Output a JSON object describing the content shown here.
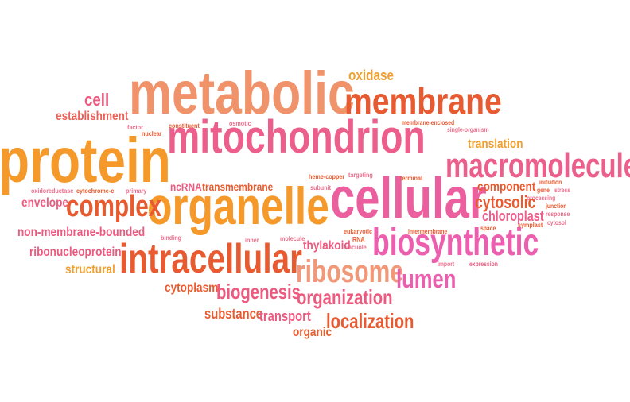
{
  "words": [
    {
      "text": "metabolic",
      "color": "#f0936a"
    },
    {
      "text": "membrane",
      "color": "#e85a30"
    },
    {
      "text": "oxidase",
      "color": "#f0a030"
    },
    {
      "text": "protein",
      "color": "#f59a2a"
    },
    {
      "text": "mitochondrion",
      "color": "#ec5f8c"
    },
    {
      "text": "cell",
      "color": "#ec5a7f"
    },
    {
      "text": "establishment",
      "color": "#e8625a"
    },
    {
      "text": "factor",
      "color": "#ec6e8c"
    },
    {
      "text": "nuclear",
      "color": "#e85a30"
    },
    {
      "text": "constituent",
      "color": "#e85a30"
    },
    {
      "text": "osmotic",
      "color": "#ec6e8c"
    },
    {
      "text": "membrane-enclosed",
      "color": "#e85a30"
    },
    {
      "text": "single-organism",
      "color": "#ec6e8c"
    },
    {
      "text": "translation",
      "color": "#f0a030"
    },
    {
      "text": "macromolecule",
      "color": "#ec5f8c"
    },
    {
      "text": "organelle",
      "color": "#f59a2a"
    },
    {
      "text": "cellular",
      "color": "#ec5f9f"
    },
    {
      "text": "ncRNA",
      "color": "#ec5a7f"
    },
    {
      "text": "transmembrane",
      "color": "#e85a30"
    },
    {
      "text": "heme-copper",
      "color": "#e85a30"
    },
    {
      "text": "targeting",
      "color": "#ec6e8c"
    },
    {
      "text": "subunit",
      "color": "#ec6e8c"
    },
    {
      "text": "terminal",
      "color": "#e85a30"
    },
    {
      "text": "component",
      "color": "#e85a30"
    },
    {
      "text": "initiation",
      "color": "#e85a30"
    },
    {
      "text": "gene",
      "color": "#e85a30"
    },
    {
      "text": "stress",
      "color": "#ec6e8c"
    },
    {
      "text": "processing",
      "color": "#ec6e8c"
    },
    {
      "text": "cytosolic",
      "color": "#e85a30"
    },
    {
      "text": "oxidoreductase",
      "color": "#ec6e8c"
    },
    {
      "text": "cytochrome-c",
      "color": "#e85a30"
    },
    {
      "text": "primary",
      "color": "#ec6e8c"
    },
    {
      "text": "envelope",
      "color": "#ec5a7f"
    },
    {
      "text": "complex",
      "color": "#e85a30"
    },
    {
      "text": "chloroplast",
      "color": "#ec5f8c"
    },
    {
      "text": "junction",
      "color": "#e85a30"
    },
    {
      "text": "response",
      "color": "#ec6e8c"
    },
    {
      "text": "cytosol",
      "color": "#ec6e8c"
    },
    {
      "text": "symplast",
      "color": "#e85a30"
    },
    {
      "text": "space",
      "color": "#e85a30"
    },
    {
      "text": "non-membrane-bounded",
      "color": "#ec5a7f"
    },
    {
      "text": "binding",
      "color": "#ec6e8c"
    },
    {
      "text": "inner",
      "color": "#ec6e8c"
    },
    {
      "text": "molecule",
      "color": "#ec6e8c"
    },
    {
      "text": "eukaryotic",
      "color": "#e85a30"
    },
    {
      "text": "RNA",
      "color": "#e85a30"
    },
    {
      "text": "vacuole",
      "color": "#ec6e8c"
    },
    {
      "text": "intermembrane",
      "color": "#e85a30"
    },
    {
      "text": "biosynthetic",
      "color": "#ec5fae"
    },
    {
      "text": "ribonucleoprotein",
      "color": "#ec5a7f"
    },
    {
      "text": "intracellular",
      "color": "#e85a30"
    },
    {
      "text": "thylakoid",
      "color": "#ec5a7f"
    },
    {
      "text": "import",
      "color": "#ec6e8c"
    },
    {
      "text": "expression",
      "color": "#ec5a7f"
    },
    {
      "text": "structural",
      "color": "#f0a030"
    },
    {
      "text": "ribosome",
      "color": "#f09878"
    },
    {
      "text": "lumen",
      "color": "#ec5fae"
    },
    {
      "text": "cytoplasm",
      "color": "#e85a30"
    },
    {
      "text": "biogenesis",
      "color": "#ec5a7f"
    },
    {
      "text": "organization",
      "color": "#ec5a7f"
    },
    {
      "text": "substance",
      "color": "#e85a30"
    },
    {
      "text": "transport",
      "color": "#ec5a7f"
    },
    {
      "text": "localization",
      "color": "#e85a30"
    },
    {
      "text": "organic",
      "color": "#e85a30"
    }
  ]
}
